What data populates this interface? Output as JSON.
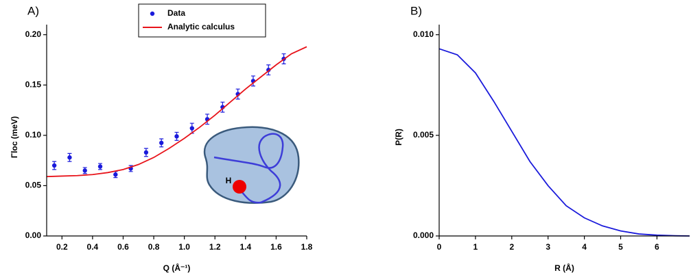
{
  "chart_data": [
    {
      "type": "scatter",
      "panel_label": "A)",
      "x_label": "Q (Å⁻¹)",
      "y_label": "Γloc (meV)",
      "xlim": [
        0.1,
        1.8
      ],
      "ylim": [
        0,
        0.21
      ],
      "xticks": [
        0.2,
        0.4,
        0.6,
        0.8,
        {
          "value": 1,
          "label": "1.0"
        },
        1.2,
        1.4,
        1.6,
        1.8
      ],
      "yticks": [
        {
          "value": 0,
          "label": "0.00"
        },
        {
          "value": 0.05,
          "label": "0.05"
        },
        {
          "value": 0.1,
          "label": "0.10"
        },
        {
          "value": 0.15,
          "label": "0.15"
        },
        {
          "value": 0.2,
          "label": "0.20"
        }
      ],
      "legend": "top right",
      "annotations": [
        "H"
      ],
      "series": [
        {
          "name": "Data",
          "type": "scatter",
          "color": "#1a1adb",
          "x": [
            0.15,
            0.25,
            0.35,
            0.45,
            0.55,
            0.65,
            0.75,
            0.85,
            0.95,
            1.05,
            1.15,
            1.25,
            1.35,
            1.45,
            1.55,
            1.65
          ],
          "values": [
            0.07,
            0.078,
            0.065,
            0.069,
            0.061,
            0.067,
            0.083,
            0.0925,
            0.099,
            0.107,
            0.116,
            0.128,
            0.141,
            0.154,
            0.165,
            0.176
          ],
          "errors": [
            0.004,
            0.004,
            0.003,
            0.003,
            0.003,
            0.003,
            0.004,
            0.004,
            0.004,
            0.005,
            0.005,
            0.005,
            0.005,
            0.005,
            0.005,
            0.005
          ]
        },
        {
          "name": "Analytic calculus",
          "type": "line",
          "color": "#e8131a",
          "x": [
            0.1,
            0.2,
            0.3,
            0.4,
            0.5,
            0.6,
            0.7,
            0.8,
            0.9,
            1.0,
            1.1,
            1.2,
            1.3,
            1.4,
            1.5,
            1.6,
            1.7,
            1.8
          ],
          "values": [
            0.059,
            0.0595,
            0.06,
            0.061,
            0.063,
            0.066,
            0.071,
            0.078,
            0.087,
            0.097,
            0.108,
            0.12,
            0.133,
            0.146,
            0.158,
            0.17,
            0.181,
            0.188
          ]
        }
      ]
    },
    {
      "type": "line",
      "panel_label": "B)",
      "x_label": "R (Å)",
      "y_label": "P(R)",
      "xlim": [
        0,
        6.9
      ],
      "ylim": [
        0,
        0.0105
      ],
      "xticks": [
        0,
        1,
        2,
        3,
        4,
        5,
        6
      ],
      "yticks": [
        {
          "value": 0,
          "label": "0.000"
        },
        {
          "value": 0.005,
          "label": "0.005"
        },
        {
          "value": 0.01,
          "label": "0.010"
        }
      ],
      "series": [
        {
          "type": "line",
          "color": "#1a1adb",
          "x": [
            0,
            0.5,
            1,
            1.5,
            2,
            2.5,
            3,
            3.5,
            4,
            4.5,
            5,
            5.5,
            6,
            6.5,
            6.9
          ],
          "values": [
            0.0093,
            0.009,
            0.0081,
            0.0067,
            0.0052,
            0.0037,
            0.0025,
            0.0015,
            0.0009,
            0.0005,
            0.00025,
            0.0001,
            4e-05,
            1e-05,
            0
          ]
        }
      ]
    }
  ]
}
